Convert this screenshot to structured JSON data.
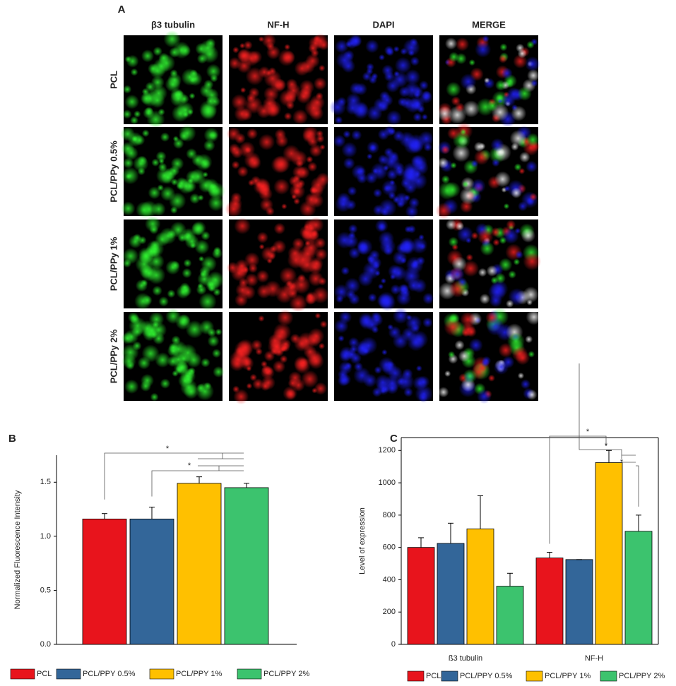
{
  "panel_a": {
    "label": "A",
    "columns": [
      "β3 tubulin",
      "NF-H",
      "DAPI",
      "MERGE"
    ],
    "rows": [
      "PCL",
      "PCL/PPy 0.5%",
      "PCL/PPy 1%",
      "PCL/PPy 2%"
    ]
  },
  "chart_data": [
    {
      "type": "bar",
      "panel": "B",
      "y_label": "Normalized Fluorescence Intensity",
      "ylim": [
        0,
        1.75
      ],
      "yticks": [
        {
          "value": 0,
          "label": "0.0"
        },
        {
          "value": 0.5,
          "label": "0.5"
        },
        {
          "value": 1,
          "label": "1.0"
        },
        {
          "value": 1.5,
          "label": "1.5"
        }
      ],
      "series": [
        {
          "name": "PCL",
          "color": "#e8141c",
          "values": [
            1.16
          ],
          "errors": [
            0.05
          ]
        },
        {
          "name": "PCL/PPY 0.5%",
          "color": "#336699",
          "values": [
            1.16
          ],
          "errors": [
            0.11
          ]
        },
        {
          "name": "PCL/PPY 1%",
          "color": "#ffc000",
          "values": [
            1.49
          ],
          "errors": [
            0.06
          ]
        },
        {
          "name": "PCL/PPY 2%",
          "color": "#3cc36e",
          "values": [
            1.45
          ],
          "errors": [
            0.04
          ]
        }
      ],
      "annotations": [
        "*",
        "*"
      ]
    },
    {
      "type": "bar",
      "panel": "C",
      "y_label": "Level of expression",
      "categories": [
        "ß3 tubulin",
        "NF-H"
      ],
      "ylim": [
        0,
        1280
      ],
      "yticks": [
        0,
        200,
        400,
        600,
        800,
        1000,
        1200
      ],
      "series": [
        {
          "name": "PCL",
          "color": "#e8141c",
          "values": [
            600,
            535
          ],
          "errors": [
            60,
            35
          ]
        },
        {
          "name": "PCL/PPY 0.5%",
          "color": "#336699",
          "values": [
            625,
            525
          ],
          "errors": [
            125,
            0
          ]
        },
        {
          "name": "PCL/PPY 1%",
          "color": "#ffc000",
          "values": [
            715,
            1125
          ],
          "errors": [
            205,
            75
          ]
        },
        {
          "name": "PCL/PPY 2%",
          "color": "#3cc36e",
          "values": [
            360,
            700
          ],
          "errors": [
            80,
            100
          ]
        }
      ],
      "annotations": [
        "*",
        "*",
        "*"
      ]
    }
  ]
}
